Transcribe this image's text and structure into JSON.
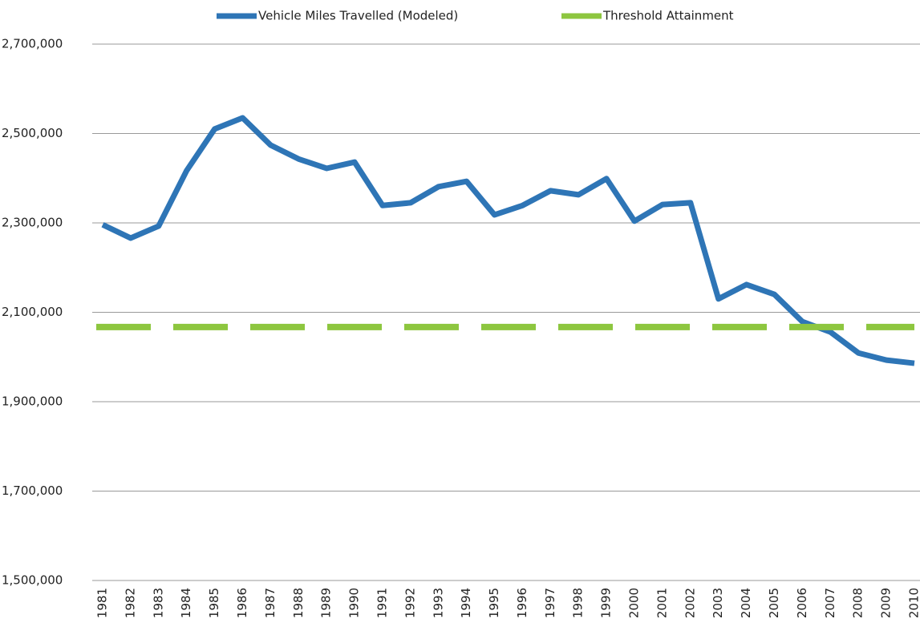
{
  "chart_data": {
    "type": "line",
    "categories": [
      "1981",
      "1982",
      "1983",
      "1984",
      "1985",
      "1986",
      "1987",
      "1988",
      "1989",
      "1990",
      "1991",
      "1992",
      "1993",
      "1994",
      "1995",
      "1996",
      "1997",
      "1998",
      "1999",
      "2000",
      "2001",
      "2002",
      "2003",
      "2004",
      "2005",
      "2006",
      "2007",
      "2008",
      "2009",
      "2010"
    ],
    "series": [
      {
        "name": "Vehicle Miles Travelled (Modeled)",
        "color": "#2e75b6",
        "style": "solid",
        "values": [
          2296000,
          2266000,
          2293000,
          2417000,
          2510000,
          2535000,
          2474000,
          2443000,
          2422000,
          2436000,
          2339000,
          2345000,
          2381000,
          2393000,
          2318000,
          2339000,
          2372000,
          2363000,
          2399000,
          2304000,
          2341000,
          2345000,
          2130000,
          2162000,
          2140000,
          2079000,
          2056000,
          2009000,
          1993000,
          1986000
        ]
      },
      {
        "name": "Threshold Attainment",
        "color": "#8dc63f",
        "style": "dashed",
        "values": [
          2067000,
          2067000,
          2067000,
          2067000,
          2067000,
          2067000,
          2067000,
          2067000,
          2067000,
          2067000,
          2067000,
          2067000,
          2067000,
          2067000,
          2067000,
          2067000,
          2067000,
          2067000,
          2067000,
          2067000,
          2067000,
          2067000,
          2067000,
          2067000,
          2067000,
          2067000,
          2067000,
          2067000,
          2067000,
          2067000
        ]
      }
    ],
    "ylim": [
      1500000,
      2700000
    ],
    "yticks": [
      {
        "value": 1500000,
        "label": "1,500,000"
      },
      {
        "value": 1700000,
        "label": "1,700,000"
      },
      {
        "value": 1900000,
        "label": "1,900,000"
      },
      {
        "value": 2100000,
        "label": "2,100,000"
      },
      {
        "value": 2300000,
        "label": "2,300,000"
      },
      {
        "value": 2500000,
        "label": "2,500,000"
      },
      {
        "value": 2700000,
        "label": "2,700,000"
      }
    ],
    "grid": true,
    "legend": "top"
  }
}
